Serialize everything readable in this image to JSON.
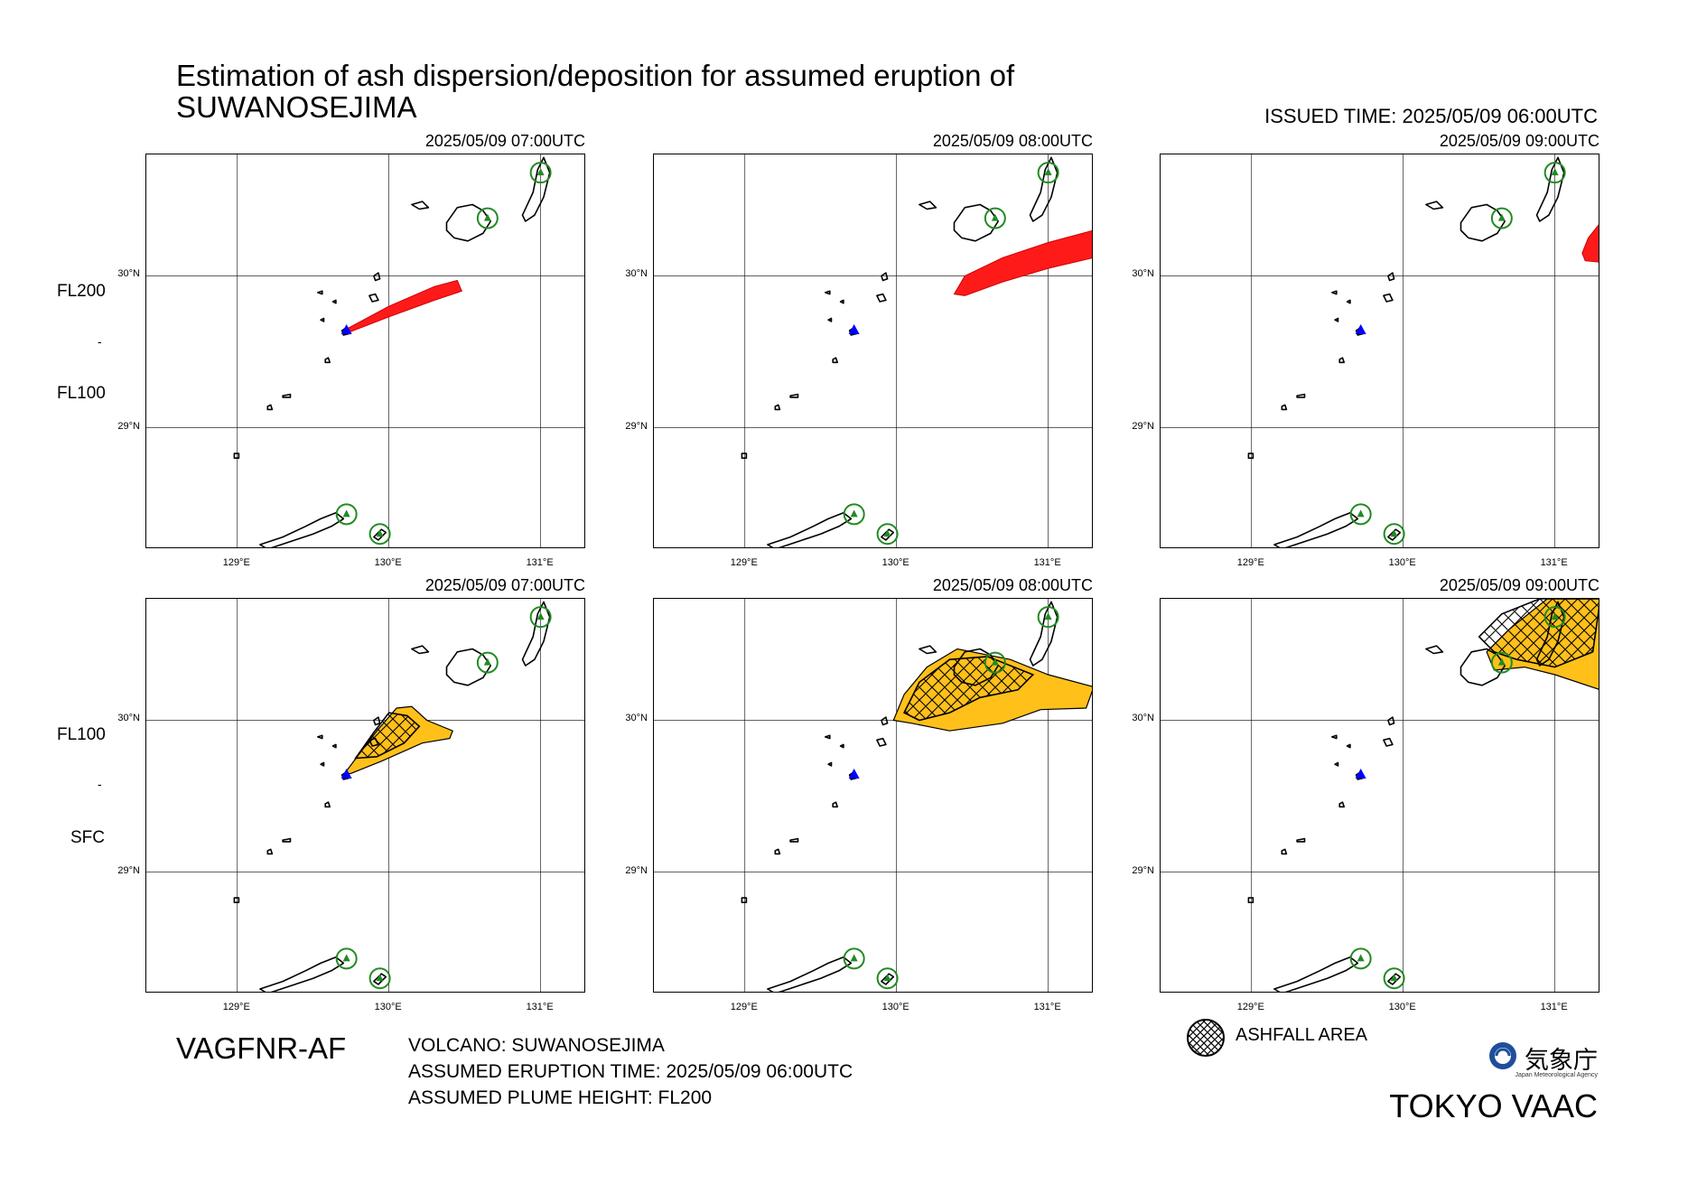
{
  "header": {
    "title_line1": "Estimation of ash dispersion/deposition for assumed eruption of",
    "title_line2": "SUWANOSEJIMA",
    "issued_time": "ISSUED TIME: 2025/05/09 06:00UTC"
  },
  "rows": [
    {
      "layer_top": "FL200",
      "layer_bottom": "FL100",
      "layer_sep": "-"
    },
    {
      "layer_top": "FL100",
      "layer_bottom": "SFC",
      "layer_sep": "-"
    }
  ],
  "panels": [
    {
      "time": "2025/05/09 07:00UTC",
      "layer": "FL100-FL200",
      "content": "ash-plume",
      "fill_color": "#ff1a1a"
    },
    {
      "time": "2025/05/09 08:00UTC",
      "layer": "FL100-FL200",
      "content": "ash-plume",
      "fill_color": "#ff1a1a"
    },
    {
      "time": "2025/05/09 09:00UTC",
      "layer": "FL100-FL200",
      "content": "ash-plume",
      "fill_color": "#ff1a1a"
    },
    {
      "time": "2025/05/09 07:00UTC",
      "layer": "SFC-FL100",
      "content": "ash-plume-with-ashfall",
      "fill_color": "#ffc01a"
    },
    {
      "time": "2025/05/09 08:00UTC",
      "layer": "SFC-FL100",
      "content": "ash-plume-with-ashfall",
      "fill_color": "#ffc01a"
    },
    {
      "time": "2025/05/09 09:00UTC",
      "layer": "SFC-FL100",
      "content": "ash-plume-with-ashfall",
      "fill_color": "#ffc01a"
    }
  ],
  "axes": {
    "lon_labels": [
      "129°E",
      "130°E",
      "131°E"
    ],
    "lat_labels": [
      "30°N",
      "29°N"
    ],
    "lon_range": [
      128.4,
      131.3
    ],
    "lat_range": [
      28.2,
      30.8
    ]
  },
  "markers": {
    "volcano_color": "#0000ff",
    "other_volcano_color": "#228b22"
  },
  "footer": {
    "product_code": "VAGFNR-AF",
    "volcano": "VOLCANO: SUWANOSEJIMA",
    "eruption_time": "ASSUMED ERUPTION TIME: 2025/05/09 06:00UTC",
    "plume_height": "ASSUMED PLUME HEIGHT: FL200",
    "legend_label": "ASHFALL AREA",
    "legend_icon": "crosshatch-icon",
    "agency_name_jp": "気象庁",
    "agency_name_en": "Japan Meteorological Agency",
    "issuer": "TOKYO VAAC"
  }
}
